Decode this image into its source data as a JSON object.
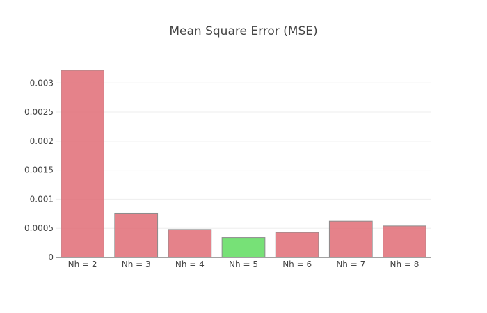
{
  "chart_data": {
    "type": "bar",
    "title": "Mean Square Error (MSE)",
    "xlabel": "",
    "ylabel": "",
    "categories": [
      "Nh = 2",
      "Nh = 3",
      "Nh = 4",
      "Nh = 5",
      "Nh = 6",
      "Nh = 7",
      "Nh = 8"
    ],
    "values": [
      0.00322,
      0.00076,
      0.00048,
      0.00034,
      0.00043,
      0.00062,
      0.00054
    ],
    "ylim": [
      0,
      0.00335
    ],
    "yticks": [
      0,
      0.0005,
      0.001,
      0.0015,
      0.002,
      0.0025,
      0.003
    ],
    "ytick_labels": [
      "0",
      "0.0005",
      "0.001",
      "0.0015",
      "0.002",
      "0.0025",
      "0.003"
    ],
    "grid": true,
    "colors": {
      "default_bar": "#e06c75",
      "highlight_bar": "#5fdc5f",
      "highlight_category": "Nh = 5"
    }
  }
}
